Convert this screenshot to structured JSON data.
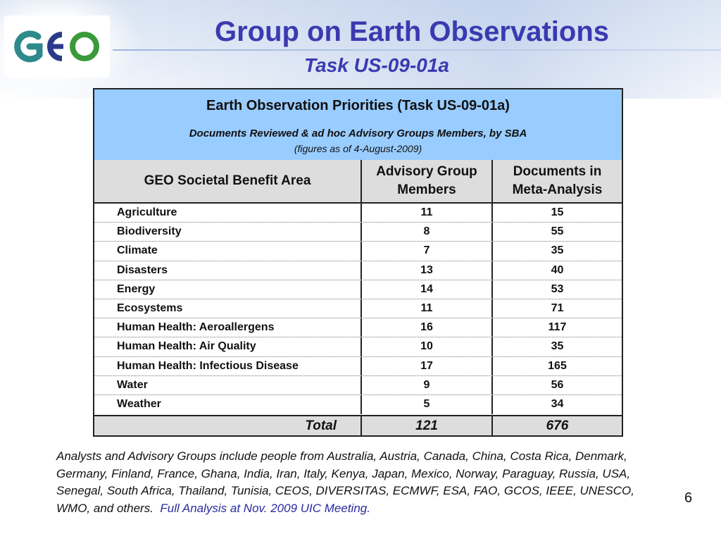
{
  "header": {
    "logo_text": "GEO",
    "title": "Group on Earth Observations",
    "subtitle": "Task US-09-01a"
  },
  "table": {
    "title": "Earth Observation Priorities (Task US-09-01a)",
    "subtitle": "Documents Reviewed & ad hoc Advisory Groups Members, by SBA",
    "note": "(figures as of 4-August-2009)",
    "columns": [
      "GEO Societal Benefit Area",
      "Advisory Group Members",
      "Documents in Meta-Analysis"
    ],
    "rows": [
      {
        "area": "Agriculture",
        "members": "11",
        "documents": "15"
      },
      {
        "area": "Biodiversity",
        "members": "8",
        "documents": "55"
      },
      {
        "area": "Climate",
        "members": "7",
        "documents": "35"
      },
      {
        "area": "Disasters",
        "members": "13",
        "documents": "40"
      },
      {
        "area": "Energy",
        "members": "14",
        "documents": "53"
      },
      {
        "area": "Ecosystems",
        "members": "11",
        "documents": "71"
      },
      {
        "area": "Human Health: Aeroallergens",
        "members": "16",
        "documents": "117"
      },
      {
        "area": "Human Health: Air Quality",
        "members": "10",
        "documents": "35"
      },
      {
        "area": "Human Health: Infectious Disease",
        "members": "17",
        "documents": "165"
      },
      {
        "area": "Water",
        "members": "9",
        "documents": "56"
      },
      {
        "area": "Weather",
        "members": "5",
        "documents": "34"
      }
    ],
    "total": {
      "label": "Total",
      "members": "121",
      "documents": "676"
    }
  },
  "footer": {
    "text": "Analysts and Advisory Groups include people from Australia, Austria, Canada, China, Costa Rica, Denmark, Germany, Finland, France, Ghana, India, Iran, Italy, Kenya, Japan, Mexico, Norway, Paraguay, Russia, USA, Senegal, South Africa, Thailand, Tunisia, CEOS, DIVERSITAS, ECMWF, ESA, FAO, GCOS, IEEE, UNESCO, WMO, and others.",
    "link_text": "Full Analysis at Nov. 2009 UIC Meeting."
  },
  "page_number": "6",
  "colors": {
    "title": "#3a3ab0",
    "table_header_bg": "#99ccff",
    "column_header_bg": "#dddddd",
    "logo_teal": "#2e8a8a",
    "logo_blue": "#2a3a8a",
    "logo_green": "#3a9a3a"
  }
}
